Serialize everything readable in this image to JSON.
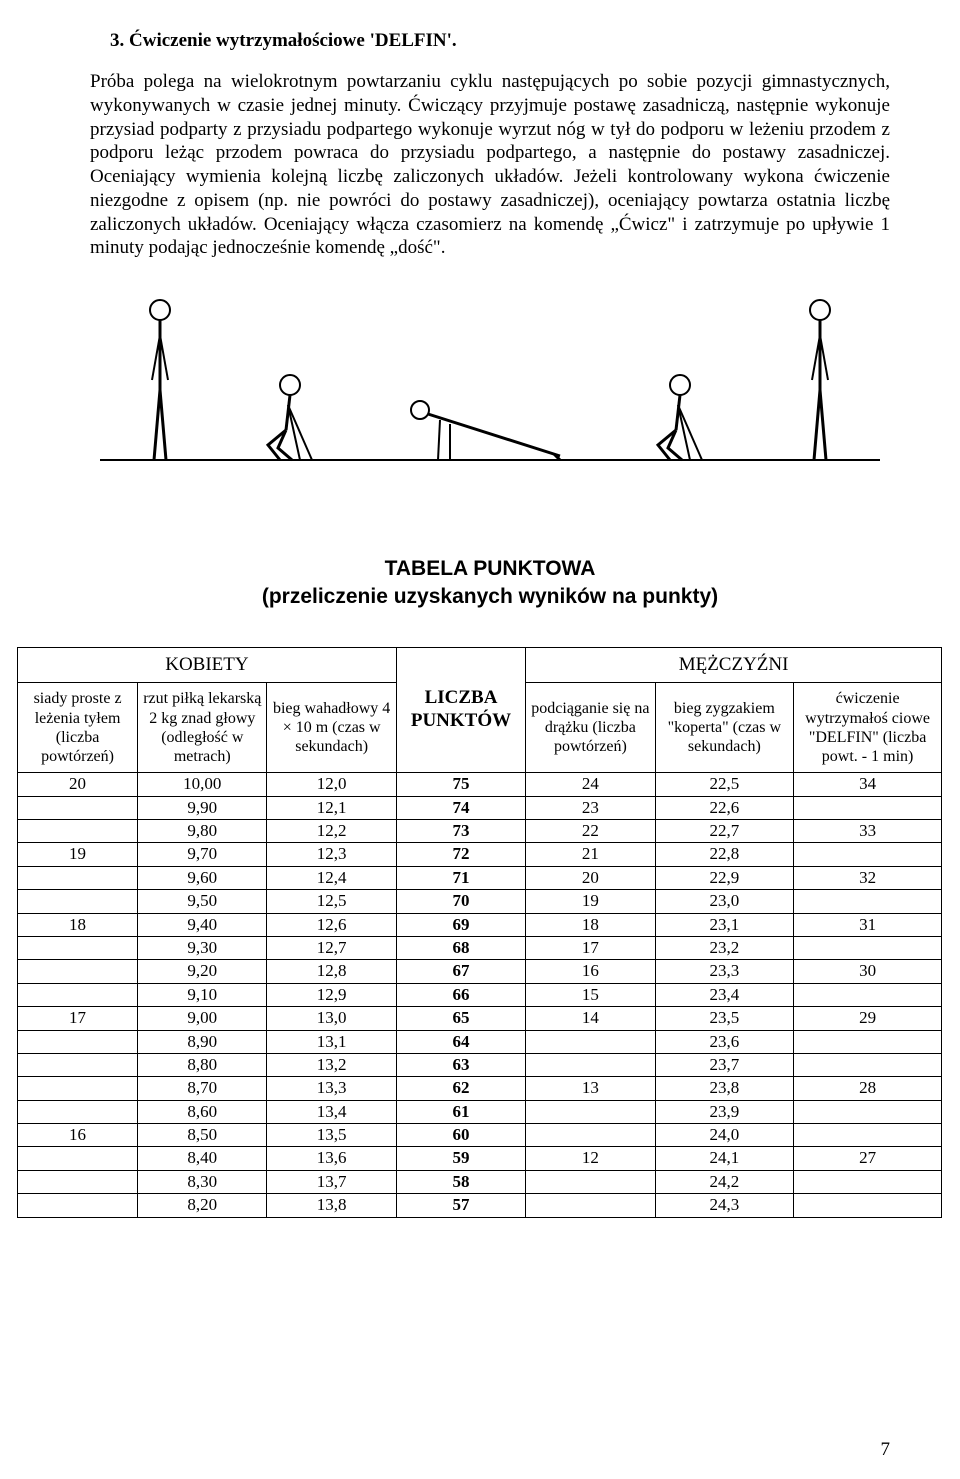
{
  "heading": "3. Ćwiczenie wytrzymałościowe 'DELFIN'.",
  "body": "Próba polega na wielokrotnym powtarzaniu cyklu następujących po sobie pozycji gimnastycznych, wykonywanych w czasie jednej minuty. Ćwiczący przyjmuje postawę zasadniczą, następnie wykonuje przysiad podparty z przysiadu podpartego wykonuje wyrzut nóg w tył do podporu w leżeniu przodem z podporu leżąc przodem powraca do przysiadu podpartego, a następnie do postawy zasadniczej. Oceniający wymienia kolejną liczbę zaliczonych układów. Jeżeli kontrolowany wykona ćwiczenie niezgodne z opisem (np. nie powróci do postawy zasadniczej), oceniający powtarza ostatnia liczbę zaliczonych układów. Oceniający włącza czasomierz na komendę „Ćwicz\" i zatrzymuje po upływie 1 minuty podając jednocześnie komendę „dość\".",
  "tableTitle1": "TABELA PUNKTOWA",
  "tableTitle2": "(przeliczenie uzyskanych wyników na punkty)",
  "groupHeaders": {
    "women": "KOBIETY",
    "men": "MĘŻCZYŹNI"
  },
  "colHeaders": {
    "c1": "siady proste z leżenia tyłem (liczba powtórzeń)",
    "c2": "rzut piłką lekarską 2 kg znad głowy (odległość w metrach)",
    "c3": "bieg wahadłowy 4 × 10 m (czas w sekundach)",
    "c4": "LICZBA PUNKTÓW",
    "c5": "podciąganie się  na drążku (liczba powtórzeń)",
    "c6": "bieg zygzakiem \"koperta\" (czas w sekundach)",
    "c7": "ćwiczenie wytrzymałoś ciowe \"DELFIN\" (liczba powt. - 1 min)"
  },
  "rows": [
    [
      "20",
      "10,00",
      "12,0",
      "75",
      "24",
      "22,5",
      "34"
    ],
    [
      "",
      "9,90",
      "12,1",
      "74",
      "23",
      "22,6",
      ""
    ],
    [
      "",
      "9,80",
      "12,2",
      "73",
      "22",
      "22,7",
      "33"
    ],
    [
      "19",
      "9,70",
      "12,3",
      "72",
      "21",
      "22,8",
      ""
    ],
    [
      "",
      "9,60",
      "12,4",
      "71",
      "20",
      "22,9",
      "32"
    ],
    [
      "",
      "9,50",
      "12,5",
      "70",
      "19",
      "23,0",
      ""
    ],
    [
      "18",
      "9,40",
      "12,6",
      "69",
      "18",
      "23,1",
      "31"
    ],
    [
      "",
      "9,30",
      "12,7",
      "68",
      "17",
      "23,2",
      ""
    ],
    [
      "",
      "9,20",
      "12,8",
      "67",
      "16",
      "23,3",
      "30"
    ],
    [
      "",
      "9,10",
      "12,9",
      "66",
      "15",
      "23,4",
      ""
    ],
    [
      "17",
      "9,00",
      "13,0",
      "65",
      "14",
      "23,5",
      "29"
    ],
    [
      "",
      "8,90",
      "13,1",
      "64",
      "",
      "23,6",
      ""
    ],
    [
      "",
      "8,80",
      "13,2",
      "63",
      "",
      "23,7",
      ""
    ],
    [
      "",
      "8,70",
      "13,3",
      "62",
      "13",
      "23,8",
      "28"
    ],
    [
      "",
      "8,60",
      "13,4",
      "61",
      "",
      "23,9",
      ""
    ],
    [
      "16",
      "8,50",
      "13,5",
      "60",
      "",
      "24,0",
      ""
    ],
    [
      "",
      "8,40",
      "13,6",
      "59",
      "12",
      "24,1",
      "27"
    ],
    [
      "",
      "8,30",
      "13,7",
      "58",
      "",
      "24,2",
      ""
    ],
    [
      "",
      "8,20",
      "13,8",
      "57",
      "",
      "24,3",
      ""
    ]
  ],
  "pageNumber": "7",
  "illustration": {
    "strokeColor": "#000000",
    "groundY": 180,
    "figures": [
      "standing",
      "squat",
      "plank",
      "squat",
      "standing"
    ]
  }
}
